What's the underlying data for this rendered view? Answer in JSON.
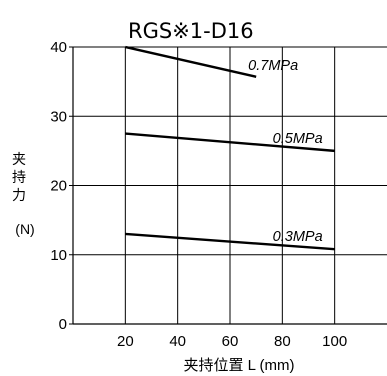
{
  "chart_data": {
    "type": "line",
    "title": "RGS※1-D16",
    "xlabel": "夹持位置 L (mm)",
    "ylabel_chars": [
      "夹",
      "持",
      "力"
    ],
    "ylabel_unit": "(N)",
    "xlim": [
      0,
      120
    ],
    "ylim": [
      0,
      40
    ],
    "x_ticks": [
      20,
      40,
      60,
      80,
      100
    ],
    "y_ticks": [
      0,
      10,
      20,
      30,
      40
    ],
    "grid": true,
    "series": [
      {
        "name": "0.7MPa",
        "x": [
          20,
          70
        ],
        "values": [
          40,
          35.7
        ]
      },
      {
        "name": "0.5MPa",
        "x": [
          20,
          100
        ],
        "values": [
          27.5,
          25.0
        ]
      },
      {
        "name": "0.3MPa",
        "x": [
          20,
          100
        ],
        "values": [
          13.0,
          10.8
        ]
      }
    ]
  }
}
